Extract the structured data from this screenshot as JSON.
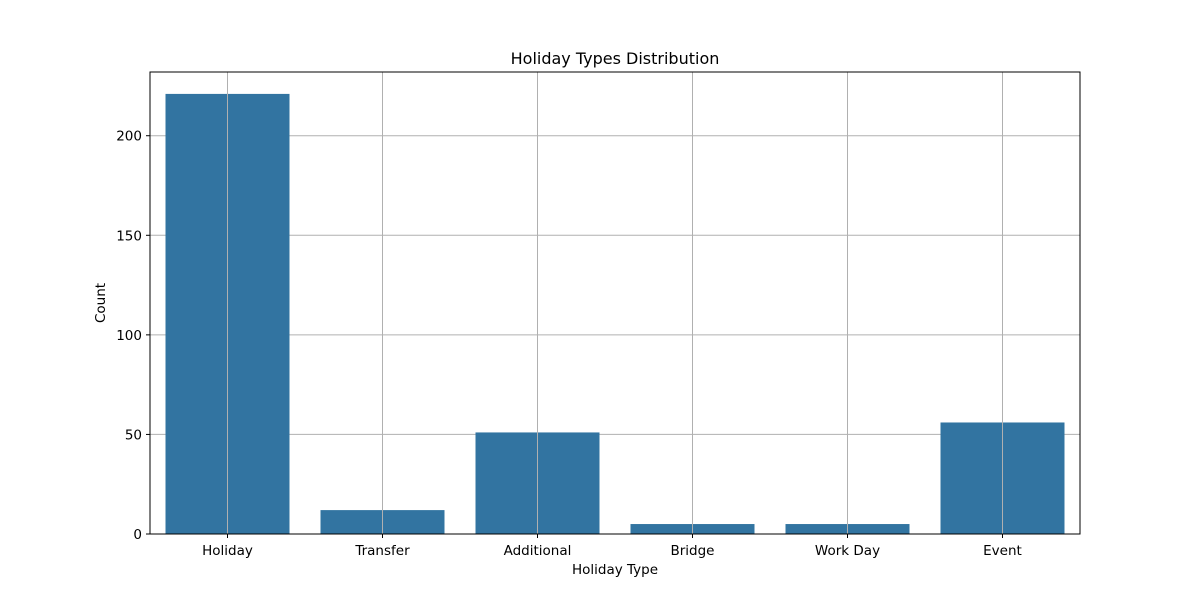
{
  "chart_data": {
    "type": "bar",
    "title": "Holiday Types Distribution",
    "xlabel": "Holiday Type",
    "ylabel": "Count",
    "categories": [
      "Holiday",
      "Transfer",
      "Additional",
      "Bridge",
      "Work Day",
      "Event"
    ],
    "values": [
      221,
      12,
      51,
      5,
      5,
      56
    ],
    "ylim": [
      0,
      232
    ],
    "yticks": [
      0,
      50,
      100,
      150,
      200
    ],
    "grid": true,
    "bar_color": "#3274a1",
    "grid_color": "#b0b0b0"
  }
}
